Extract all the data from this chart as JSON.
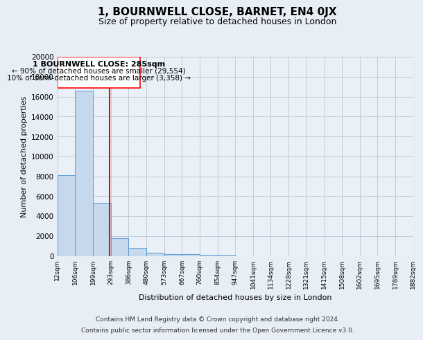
{
  "title": "1, BOURNWELL CLOSE, BARNET, EN4 0JX",
  "subtitle": "Size of property relative to detached houses in London",
  "xlabel": "Distribution of detached houses by size in London",
  "ylabel": "Number of detached properties",
  "bar_values": [
    8100,
    16600,
    5300,
    1750,
    800,
    300,
    200,
    150,
    100,
    100,
    0,
    0,
    0,
    0,
    0,
    0,
    0,
    0,
    0,
    0
  ],
  "bin_edges": [
    12,
    106,
    199,
    293,
    386,
    480,
    573,
    667,
    760,
    854,
    947,
    1041,
    1134,
    1228,
    1321,
    1415,
    1508,
    1602,
    1695,
    1789,
    1882
  ],
  "tick_labels": [
    "12sqm",
    "106sqm",
    "199sqm",
    "293sqm",
    "386sqm",
    "480sqm",
    "573sqm",
    "667sqm",
    "760sqm",
    "854sqm",
    "947sqm",
    "1041sqm",
    "1134sqm",
    "1228sqm",
    "1321sqm",
    "1415sqm",
    "1508sqm",
    "1602sqm",
    "1695sqm",
    "1789sqm",
    "1882sqm"
  ],
  "bar_color": "#c5d8ec",
  "bar_edge_color": "#5b9bd5",
  "red_line_x": 285,
  "ylim": [
    0,
    20000
  ],
  "yticks": [
    0,
    2000,
    4000,
    6000,
    8000,
    10000,
    12000,
    14000,
    16000,
    18000,
    20000
  ],
  "annotation_title": "1 BOURNWELL CLOSE: 285sqm",
  "annotation_line1": "← 90% of detached houses are smaller (29,554)",
  "annotation_line2": "10% of semi-detached houses are larger (3,358) →",
  "bg_color": "#e8eef5",
  "plot_bg_color": "#eaf0f7",
  "footer_line1": "Contains HM Land Registry data © Crown copyright and database right 2024.",
  "footer_line2": "Contains public sector information licensed under the Open Government Licence v3.0."
}
